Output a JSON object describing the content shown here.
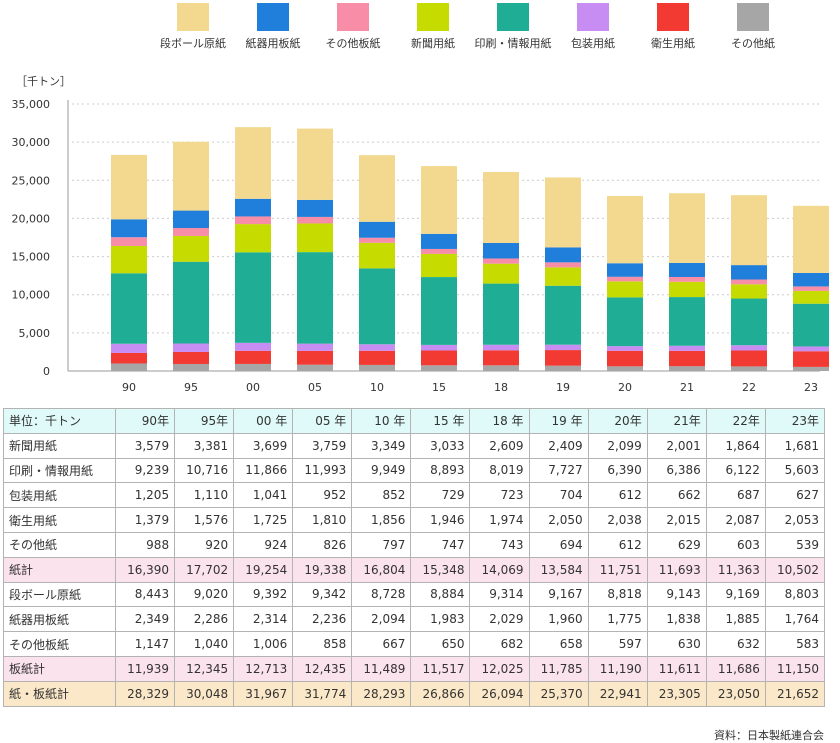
{
  "chart_data": {
    "type": "bar",
    "stacked": true,
    "title": "",
    "ylabel": "［千トン］",
    "xlabel": "",
    "ylim": [
      0,
      35000
    ],
    "yticks": [
      "0",
      "5,000",
      "10,000",
      "15,000",
      "20,000",
      "25,000",
      "30,000",
      "35,000"
    ],
    "ytick_values": [
      0,
      5000,
      10000,
      15000,
      20000,
      25000,
      30000,
      35000
    ],
    "grid": true,
    "legend_position": "top",
    "categories": [
      "90",
      "95",
      "00",
      "05",
      "10",
      "15",
      "18",
      "19",
      "20",
      "21",
      "22",
      "23"
    ],
    "series": [
      {
        "name": "その他紙",
        "color": "#a6a6a6",
        "values": [
          988,
          920,
          924,
          826,
          797,
          747,
          743,
          694,
          612,
          629,
          603,
          539
        ]
      },
      {
        "name": "衛生用紙",
        "color": "#f23a32",
        "values": [
          1379,
          1576,
          1725,
          1810,
          1856,
          1946,
          1974,
          2050,
          2038,
          2015,
          2087,
          2053
        ]
      },
      {
        "name": "包装用紙",
        "color": "#c88df2",
        "values": [
          1205,
          1110,
          1041,
          952,
          852,
          729,
          723,
          704,
          612,
          662,
          687,
          627
        ]
      },
      {
        "name": "印刷・情報用紙",
        "color": "#1fae95",
        "values": [
          9239,
          10716,
          11866,
          11993,
          9949,
          8893,
          8019,
          7727,
          6390,
          6386,
          6122,
          5603
        ]
      },
      {
        "name": "新聞用紙",
        "color": "#c6dc00",
        "values": [
          3579,
          3381,
          3699,
          3759,
          3349,
          3033,
          2609,
          2409,
          2099,
          2001,
          1864,
          1681
        ]
      },
      {
        "name": "その他板紙",
        "color": "#f78da7",
        "values": [
          1147,
          1040,
          1006,
          858,
          667,
          650,
          682,
          658,
          597,
          630,
          632,
          583
        ]
      },
      {
        "name": "紙器用板紙",
        "color": "#1f7fdb",
        "values": [
          2349,
          2286,
          2314,
          2236,
          2094,
          1983,
          2029,
          1960,
          1775,
          1838,
          1885,
          1764
        ]
      },
      {
        "name": "段ボール原紙",
        "color": "#f2d98f",
        "values": [
          8443,
          9020,
          9392,
          9342,
          8728,
          8884,
          9314,
          9167,
          8818,
          9143,
          9169,
          8803
        ]
      }
    ],
    "legend_order": [
      "段ボール原紙",
      "紙器用板紙",
      "その他板紙",
      "新聞用紙",
      "印刷・情報用紙",
      "包装用紙",
      "衛生用紙",
      "その他紙"
    ]
  },
  "table": {
    "unit_label": "単位：千トン",
    "headers": [
      "90年",
      "95年",
      "00 年",
      "05 年",
      "10 年",
      "15 年",
      "18 年",
      "19 年",
      "20年",
      "21年",
      "22年",
      "23年"
    ],
    "rows": [
      {
        "label": "新聞用紙",
        "kind": "normal",
        "values": [
          "3,579",
          "3,381",
          "3,699",
          "3,759",
          "3,349",
          "3,033",
          "2,609",
          "2,409",
          "2,099",
          "2,001",
          "1,864",
          "1,681"
        ]
      },
      {
        "label": "印刷・情報用紙",
        "kind": "normal",
        "values": [
          "9,239",
          "10,716",
          "11,866",
          "11,993",
          "9,949",
          "8,893",
          "8,019",
          "7,727",
          "6,390",
          "6,386",
          "6,122",
          "5,603"
        ]
      },
      {
        "label": "包装用紙",
        "kind": "normal",
        "values": [
          "1,205",
          "1,110",
          "1,041",
          "952",
          "852",
          "729",
          "723",
          "704",
          "612",
          "662",
          "687",
          "627"
        ]
      },
      {
        "label": "衛生用紙",
        "kind": "normal",
        "values": [
          "1,379",
          "1,576",
          "1,725",
          "1,810",
          "1,856",
          "1,946",
          "1,974",
          "2,050",
          "2,038",
          "2,015",
          "2,087",
          "2,053"
        ]
      },
      {
        "label": "その他紙",
        "kind": "normal",
        "values": [
          "988",
          "920",
          "924",
          "826",
          "797",
          "747",
          "743",
          "694",
          "612",
          "629",
          "603",
          "539"
        ]
      },
      {
        "label": "紙計",
        "kind": "subtotal",
        "values": [
          "16,390",
          "17,702",
          "19,254",
          "19,338",
          "16,804",
          "15,348",
          "14,069",
          "13,584",
          "11,751",
          "11,693",
          "11,363",
          "10,502"
        ]
      },
      {
        "label": "段ボール原紙",
        "kind": "normal",
        "values": [
          "8,443",
          "9,020",
          "9,392",
          "9,342",
          "8,728",
          "8,884",
          "9,314",
          "9,167",
          "8,818",
          "9,143",
          "9,169",
          "8,803"
        ]
      },
      {
        "label": "紙器用板紙",
        "kind": "normal",
        "values": [
          "2,349",
          "2,286",
          "2,314",
          "2,236",
          "2,094",
          "1,983",
          "2,029",
          "1,960",
          "1,775",
          "1,838",
          "1,885",
          "1,764"
        ]
      },
      {
        "label": "その他板紙",
        "kind": "normal",
        "values": [
          "1,147",
          "1,040",
          "1,006",
          "858",
          "667",
          "650",
          "682",
          "658",
          "597",
          "630",
          "632",
          "583"
        ]
      },
      {
        "label": "板紙計",
        "kind": "subtotal",
        "values": [
          "11,939",
          "12,345",
          "12,713",
          "12,435",
          "11,489",
          "11,517",
          "12,025",
          "11,785",
          "11,190",
          "11,611",
          "11,686",
          "11,150"
        ]
      },
      {
        "label": "紙・板紙計",
        "kind": "total",
        "values": [
          "28,329",
          "30,048",
          "31,967",
          "31,774",
          "28,293",
          "26,866",
          "26,094",
          "25,370",
          "22,941",
          "23,305",
          "23,050",
          "21,652"
        ]
      }
    ]
  },
  "source_note": "資料：日本製紙連合会"
}
